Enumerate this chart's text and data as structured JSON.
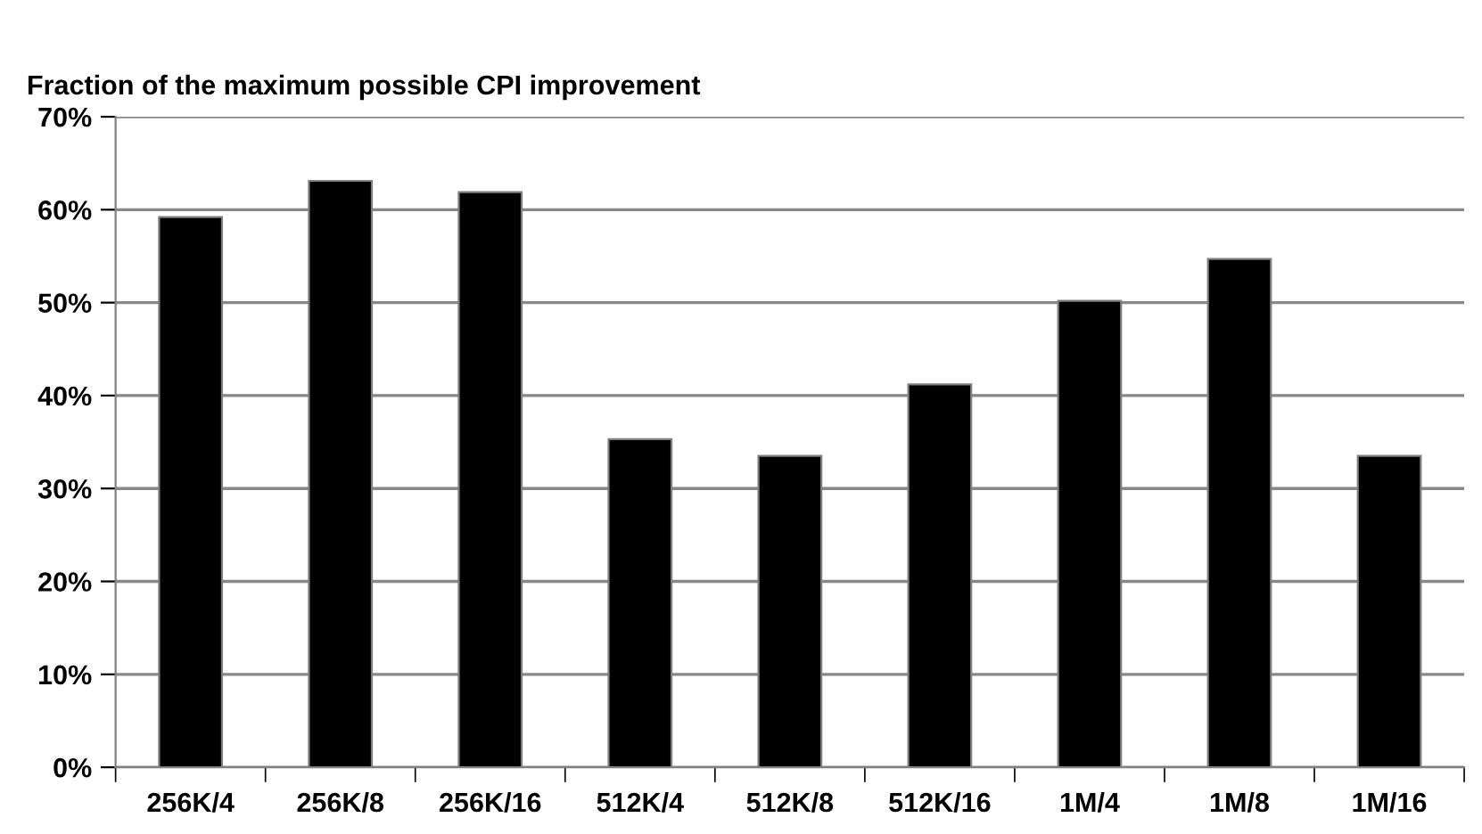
{
  "chart_data": {
    "type": "bar",
    "title": "Fraction of the maximum possible CPI improvement",
    "categories": [
      "256K/4",
      "256K/8",
      "256K/16",
      "512K/4",
      "512K/8",
      "512K/16",
      "1M/4",
      "1M/8",
      "1M/16"
    ],
    "values": [
      59.2,
      63.1,
      61.9,
      35.3,
      33.5,
      41.2,
      50.2,
      54.7,
      33.5
    ],
    "color": "#000000",
    "ylim": [
      0,
      70
    ],
    "yticks": [
      {
        "value": 0,
        "label": "0%"
      },
      {
        "value": 10,
        "label": "10%"
      },
      {
        "value": 20,
        "label": "20%"
      },
      {
        "value": 30,
        "label": "30%"
      },
      {
        "value": 40,
        "label": "40%"
      },
      {
        "value": 50,
        "label": "50%"
      },
      {
        "value": 60,
        "label": "60%"
      },
      {
        "value": 70,
        "label": "70%"
      }
    ],
    "grid": "y",
    "legend": false
  }
}
